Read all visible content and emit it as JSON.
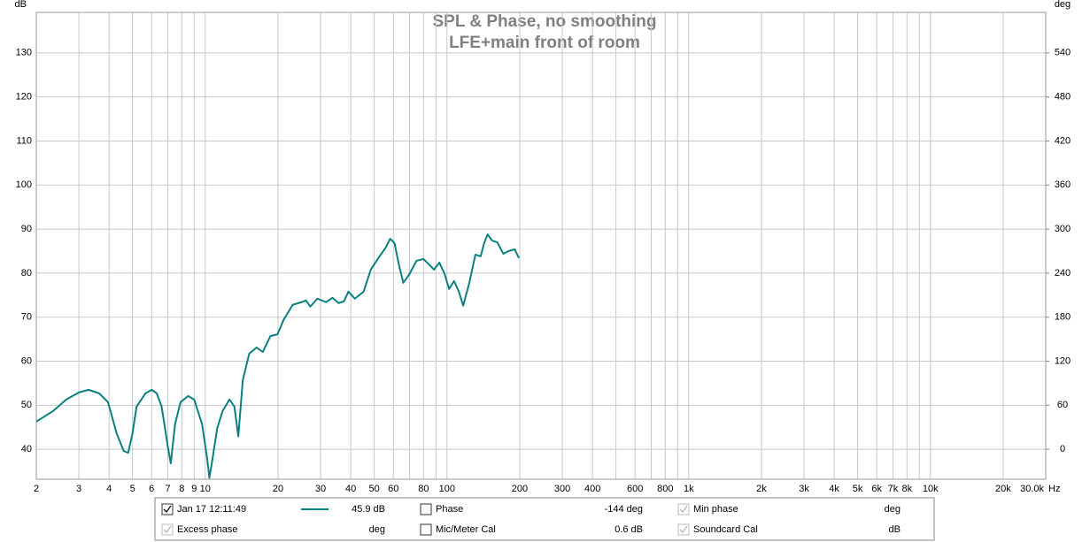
{
  "chart_data": {
    "type": "line",
    "title": "SPL & Phase, no smoothing",
    "subtitle": "LFE+main front of room",
    "y_unit": "dB",
    "y2_unit": "deg",
    "x_unit": "Hz",
    "log_x": true,
    "grid": true,
    "xlim": [
      2,
      30000
    ],
    "ylim": [
      33.2,
      139.2
    ],
    "y2lim": [
      -40.8,
      595.2
    ],
    "xticks": [
      2,
      3,
      4,
      5,
      6,
      7,
      8,
      9,
      10,
      20,
      30,
      40,
      50,
      60,
      80,
      100,
      200,
      300,
      400,
      600,
      800,
      {
        "value": 1000,
        "label": "1k"
      },
      {
        "value": 2000,
        "label": "2k"
      },
      {
        "value": 3000,
        "label": "3k"
      },
      {
        "value": 4000,
        "label": "4k"
      },
      {
        "value": 5000,
        "label": "5k"
      },
      {
        "value": 6000,
        "label": "6k"
      },
      {
        "value": 7000,
        "label": "7k"
      },
      {
        "value": 8000,
        "label": "8k"
      },
      {
        "value": 10000,
        "label": "10k"
      },
      {
        "value": 20000,
        "label": "20k"
      },
      {
        "value": 30000,
        "label": "30.0k"
      }
    ],
    "x_minor_ticks": [
      70,
      90,
      500,
      700,
      900,
      9000
    ],
    "yticks": [
      40,
      50,
      60,
      70,
      80,
      90,
      100,
      110,
      120,
      130
    ],
    "y2ticks": [
      0,
      60,
      120,
      180,
      240,
      300,
      360,
      420,
      480,
      540
    ],
    "x": [
      2,
      2.35,
      2.66,
      3.0,
      3.29,
      3.64,
      3.96,
      4.3,
      4.6,
      4.8,
      5.0,
      5.2,
      5.66,
      6.0,
      6.3,
      6.6,
      7.0,
      7.2,
      7.5,
      7.9,
      8.5,
      9.0,
      9.7,
      10.2,
      10.4,
      10.7,
      11.2,
      11.8,
      12.6,
      13.2,
      13.7,
      14.3,
      15.2,
      16.3,
      17.3,
      18.6,
      19.9,
      21.1,
      23.0,
      25.0,
      26.1,
      27.2,
      29.1,
      31.6,
      33.6,
      35.6,
      37.5,
      39.1,
      41.6,
      45.2,
      48.4,
      52.6,
      55.8,
      58.2,
      60.7,
      63.3,
      66.0,
      70.0,
      74.8,
      80.0,
      84.8,
      88.4,
      93.0,
      97.8,
      102,
      107,
      112,
      116.7,
      123.7,
      131.1,
      137.8,
      142.5,
      147.3,
      153.6,
      161.4,
      171.1,
      179.8,
      190.6,
      198.6
    ],
    "series": [
      {
        "name": "Jan 17 12:11:49",
        "readout": "45.9 dB",
        "checked": true,
        "color": "#0a8080",
        "values": [
          46.3,
          48.7,
          51.3,
          52.9,
          53.5,
          52.7,
          50.7,
          43.6,
          39.6,
          39.2,
          43.6,
          49.7,
          52.7,
          53.5,
          52.7,
          49.7,
          40.6,
          36.8,
          45.7,
          50.7,
          52.1,
          51.3,
          45.7,
          37.6,
          33.5,
          37.6,
          44.7,
          48.7,
          51.3,
          49.7,
          42.9,
          55.7,
          61.7,
          63.1,
          62.1,
          65.7,
          66.1,
          69.4,
          72.8,
          73.4,
          73.8,
          72.4,
          74.2,
          73.4,
          74.4,
          73.2,
          73.6,
          75.8,
          74.2,
          75.8,
          80.8,
          83.8,
          85.8,
          87.8,
          86.8,
          81.8,
          77.8,
          79.8,
          82.8,
          83.2,
          81.8,
          80.8,
          82.4,
          79.8,
          76.4,
          78.2,
          75.8,
          72.6,
          77.8,
          84.2,
          83.8,
          86.8,
          88.8,
          87.4,
          87.0,
          84.4,
          85.0,
          85.4,
          83.4
        ]
      }
    ],
    "legend": [
      {
        "label": "Phase",
        "readout": "-144 deg",
        "checked": false,
        "enabled": true,
        "color": "#1a9a9a"
      },
      {
        "label": "Min phase",
        "readout": "deg",
        "checked": true,
        "enabled": false,
        "color": "#999999"
      },
      {
        "label": "Excess phase",
        "readout": "deg",
        "checked": true,
        "enabled": false,
        "color": "#999999"
      },
      {
        "label": "Mic/Meter Cal",
        "readout": "0.6 dB",
        "checked": false,
        "enabled": true,
        "color": "#000000"
      },
      {
        "label": "Soundcard Cal",
        "readout": "dB",
        "checked": true,
        "enabled": false,
        "color": "#999999"
      }
    ]
  }
}
